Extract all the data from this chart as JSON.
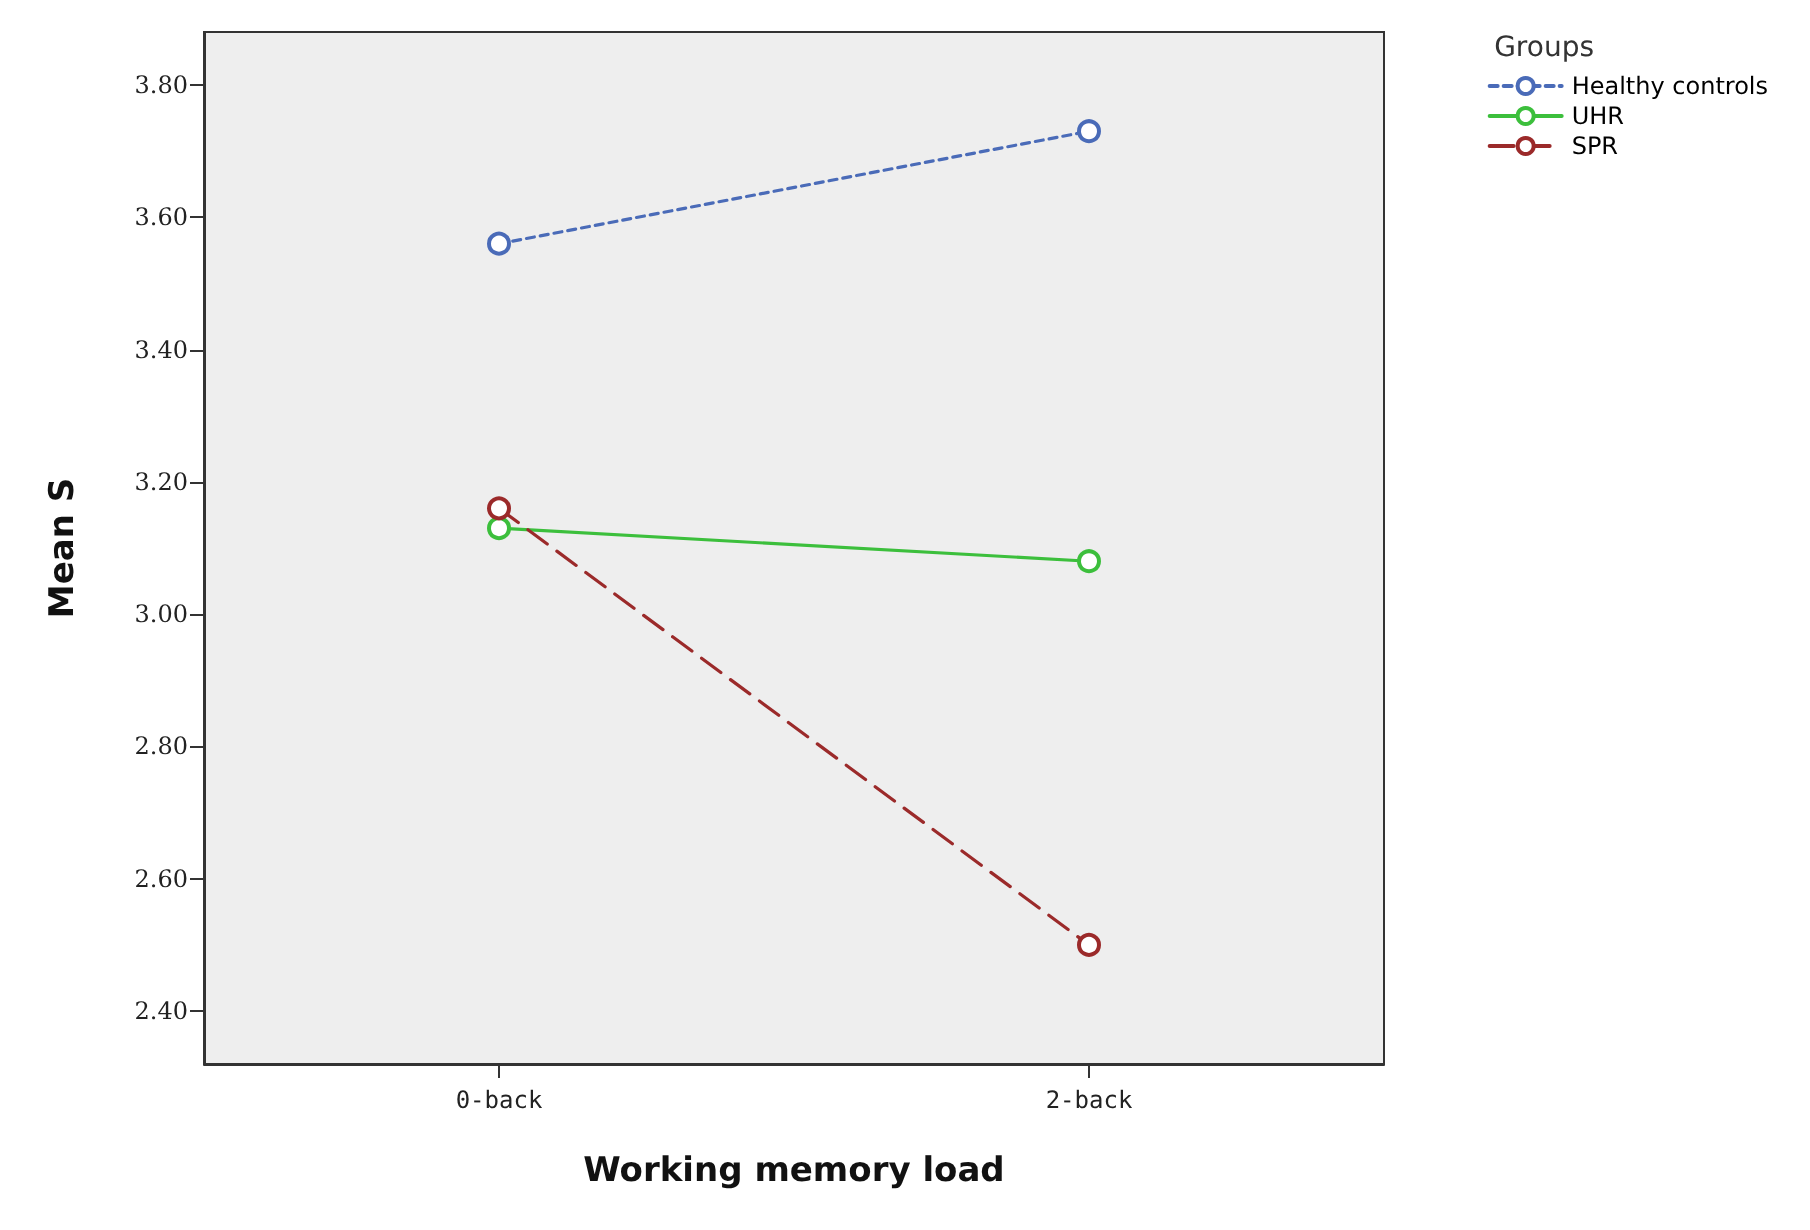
{
  "chart_data": {
    "type": "line",
    "xlabel": "Working memory load",
    "ylabel": "Mean S",
    "legend_title": "Groups",
    "categories": [
      "0-back",
      "2-back"
    ],
    "series": [
      {
        "name": "Healthy controls",
        "color": "#4a6bb8",
        "line_style": "dotted",
        "values": [
          3.56,
          3.73
        ]
      },
      {
        "name": "UHR",
        "color": "#3cbf3c",
        "line_style": "solid",
        "values": [
          3.13,
          3.08
        ]
      },
      {
        "name": "SPR",
        "color": "#9b2a2a",
        "line_style": "dashed",
        "values": [
          3.16,
          2.5
        ]
      }
    ],
    "ylim": [
      2.32,
      3.88
    ],
    "yticks": [
      {
        "value": 2.4,
        "label": "2.40"
      },
      {
        "value": 2.6,
        "label": "2.60"
      },
      {
        "value": 2.8,
        "label": "2.80"
      },
      {
        "value": 3.0,
        "label": "3.00"
      },
      {
        "value": 3.2,
        "label": "3.20"
      },
      {
        "value": 3.4,
        "label": "3.40"
      },
      {
        "value": 3.6,
        "label": "3.60"
      },
      {
        "value": 3.8,
        "label": "3.80"
      }
    ],
    "grid": false,
    "legend": "top right",
    "marker": "circle"
  }
}
